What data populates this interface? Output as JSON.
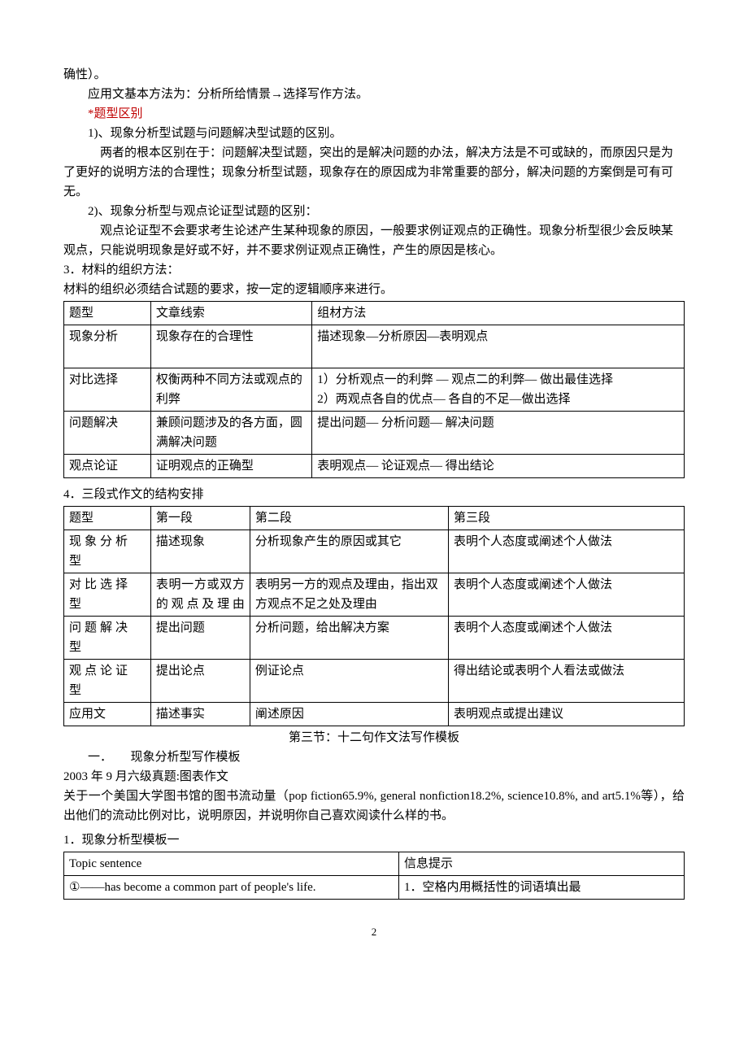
{
  "intro": {
    "l1": "确性）。",
    "l2": "应用文基本方法为：分析所给情景→选择写作方法。",
    "l3_star": "*",
    "l3_text": "题型区别",
    "l4": "1)、现象分析型试题与问题解决型试题的区别。",
    "l5": "两者的根本区别在于：问题解决型试题，突出的是解决问题的办法，解决方法是不可或缺的，而原因只是为了更好的说明方法的合理性；现象分析型试题，现象存在的原因成为非常重要的部分，解决问题的方案倒是可有可无。",
    "l6": "2)、现象分析型与观点论证型试题的区别：",
    "l7": "观点论证型不会要求考生论述产生某种现象的原因，一般要求例证观点的正确性。现象分析型很少会反映某观点，只能说明现象是好或不好，并不要求例证观点正确性，产生的原因是核心。",
    "l8": "3．材料的组织方法：",
    "l9": "材料的组织必须结合试题的要求，按一定的逻辑顺序来进行。"
  },
  "table1": {
    "col_widths": [
      "14%",
      "26%",
      "60%"
    ],
    "header": [
      "题型",
      "文章线索",
      "组材方法"
    ],
    "rows": [
      [
        "现象分析",
        "现象存在的合理性",
        "描述现象—分析原因—表明观点"
      ],
      [
        "对比选择",
        "权衡两种不同方法或观点的利弊",
        "1）分析观点一的利弊 — 观点二的利弊— 做出最佳选择\n2）两观点各自的优点— 各自的不足—做出选择"
      ],
      [
        "问题解决",
        "兼顾问题涉及的各方面，圆满解决问题",
        "提出问题— 分析问题— 解决问题"
      ],
      [
        "观点论证",
        "证明观点的正确型",
        "表明观点— 论证观点— 得出结论"
      ]
    ]
  },
  "section4_title": "4．三段式作文的结构安排",
  "table2": {
    "header": [
      "题型",
      "第一段",
      "第二段",
      "第三段"
    ],
    "rows": [
      [
        "现象分析型",
        "描述现象",
        "分析现象产生的原因或其它",
        "表明个人态度或阐述个人做法"
      ],
      [
        "对比选择型",
        "表明一方或双方的观点及理由",
        "表明另一方的观点及理由，指出双方观点不足之处及理由",
        "表明个人态度或阐述个人做法"
      ],
      [
        "问题解决型",
        "提出问题",
        "分析问题，给出解决方案",
        "表明个人态度或阐述个人做法"
      ],
      [
        "观点论证型",
        "提出论点",
        "例证论点",
        "得出结论或表明个人看法或做法"
      ],
      [
        "应用文",
        "描述事实",
        "阐述原因",
        "表明观点或提出建议"
      ]
    ]
  },
  "section3_title": "第三节：十二句作文法写作模板",
  "template_heading": "一．　　现象分析型写作模板",
  "exam_line": "2003 年 9 月六级真题:图表作文",
  "exam_desc": "关于一个美国大学图书馆的图书流动量（pop fiction65.9%, general nonfiction18.2%, science10.8%, and art5.1%等），给出他们的流动比例对比，说明原因，并说明你自己喜欢阅读什么样的书。",
  "template1_title": "1．现象分析型模板一",
  "table3": {
    "header": [
      "Topic sentence",
      "信息提示"
    ],
    "row1": [
      "①——has become a common part of people's life.",
      "1．空格内用概括性的词语填出最"
    ]
  },
  "page_number": "2"
}
